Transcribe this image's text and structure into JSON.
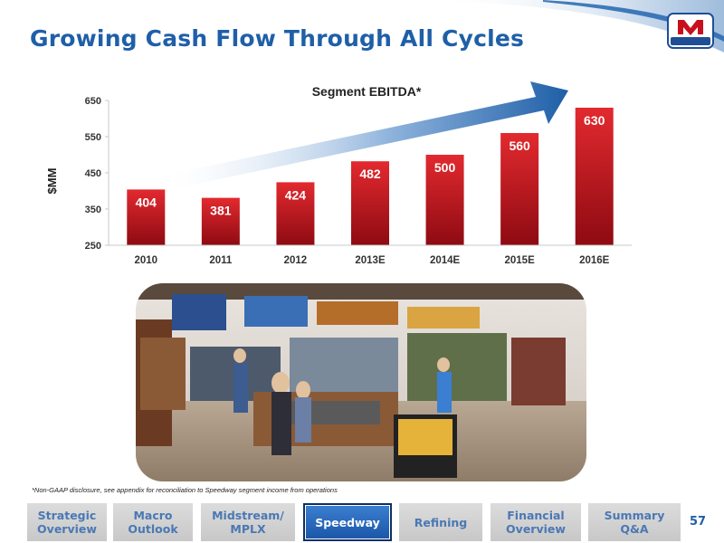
{
  "slide": {
    "title": "Growing Cash Flow Through All Cycles",
    "logo_text": "MARATHON",
    "page_number": "57",
    "footnote": "*Non-GAAP disclosure, see appendix for reconciliation to Speedway segment income from operations",
    "colors": {
      "title": "#1f5fa8",
      "bar": "#c8101c",
      "nav_active": "#1f5fa8",
      "nav_inactive": "#d3d3d3"
    }
  },
  "chart_data": {
    "type": "bar",
    "title": "Segment EBITDA*",
    "ylabel": "$MM",
    "xlabel": "",
    "categories": [
      "2010",
      "2011",
      "2012",
      "2013E",
      "2014E",
      "2015E",
      "2016E"
    ],
    "values": [
      404,
      381,
      424,
      482,
      500,
      560,
      630
    ],
    "data_labels": [
      "404",
      "381",
      "424",
      "482",
      "500",
      "560",
      "630"
    ],
    "ylim": [
      250,
      650
    ],
    "yticks": [
      250,
      350,
      450,
      550,
      650
    ],
    "ytick_labels": [
      "250",
      "350",
      "450",
      "550",
      "650"
    ],
    "grid": false,
    "legend": "none",
    "annotation": "upward trend arrow"
  },
  "nav": {
    "items": [
      {
        "label": "Strategic\nOverview",
        "active": false
      },
      {
        "label": "Macro\nOutlook",
        "active": false
      },
      {
        "label": "Midstream/\nMPLX",
        "active": false
      },
      {
        "label": "Speedway",
        "active": true
      },
      {
        "label": "Refining",
        "active": false
      },
      {
        "label": "Financial\nOverview",
        "active": false
      },
      {
        "label": "Summary\nQ&A",
        "active": false
      }
    ]
  }
}
